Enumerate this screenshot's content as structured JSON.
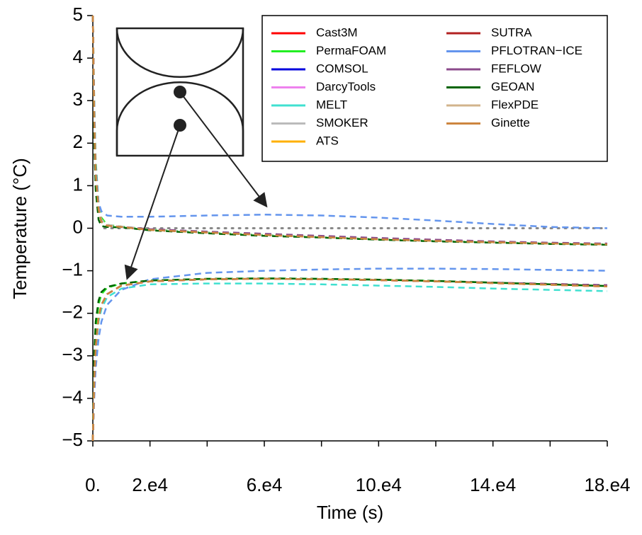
{
  "chart_data": {
    "type": "line",
    "ylabel": "Temperature (°C)",
    "xlabel": "Time (s)",
    "x": [
      0,
      500,
      1000,
      2000,
      3000,
      5000,
      10000,
      20000,
      40000,
      60000,
      80000,
      100000,
      120000,
      140000,
      160000,
      180000
    ],
    "xlim": [
      0,
      180000
    ],
    "xticks": [
      {
        "value": 0,
        "label": "0."
      },
      {
        "value": 20000,
        "label": "2.e4"
      },
      {
        "value": 60000,
        "label": "6.e4"
      },
      {
        "value": 100000,
        "label": "10.e4"
      },
      {
        "value": 140000,
        "label": "14.e4"
      },
      {
        "value": 180000,
        "label": "18.e4"
      }
    ],
    "minor_xticks": [
      40000,
      80000,
      120000,
      160000
    ],
    "ylim": [
      -5,
      5
    ],
    "yticks": [
      {
        "value": -5,
        "label": "−5"
      },
      {
        "value": -4,
        "label": "−4"
      },
      {
        "value": -3,
        "label": "−3"
      },
      {
        "value": -2,
        "label": "−2"
      },
      {
        "value": -1,
        "label": "−1"
      },
      0,
      1,
      2,
      3,
      4,
      5
    ],
    "reference_line": {
      "y": 0,
      "x": [
        4000,
        180000
      ],
      "color": "#888888"
    },
    "legend": "top-right",
    "series": [
      {
        "name": "Cast3M",
        "color": "#ff0000",
        "values": [
          5,
          2.6,
          1.3,
          0.45,
          0.15,
          0.06,
          0.03,
          -0.04,
          -0.1,
          -0.16,
          -0.21,
          -0.26,
          -0.3,
          -0.33,
          -0.36,
          -0.38
        ],
        "lower_values": [
          -5,
          -3.6,
          -2.8,
          -2.1,
          -1.8,
          -1.55,
          -1.35,
          -1.25,
          -1.2,
          -1.19,
          -1.2,
          -1.22,
          -1.25,
          -1.29,
          -1.33,
          -1.37
        ]
      },
      {
        "name": "PermaFOAM",
        "color": "#22ee22",
        "values": [
          5,
          3,
          1.6,
          0.6,
          0.25,
          0.08,
          0.04,
          -0.03,
          -0.1,
          -0.16,
          -0.21,
          -0.26,
          -0.3,
          -0.33,
          -0.36,
          -0.38
        ],
        "lower_values": [
          -5,
          -3.2,
          -2.4,
          -1.8,
          -1.55,
          -1.4,
          -1.3,
          -1.23,
          -1.19,
          -1.18,
          -1.19,
          -1.21,
          -1.24,
          -1.28,
          -1.32,
          -1.36
        ]
      },
      {
        "name": "COMSOL",
        "color": "#0000dd",
        "values": [
          5,
          2.6,
          1.3,
          0.45,
          0.15,
          0.06,
          0.03,
          -0.04,
          -0.1,
          -0.16,
          -0.21,
          -0.26,
          -0.3,
          -0.33,
          -0.36,
          -0.38
        ],
        "lower_values": [
          -5,
          -3.6,
          -2.8,
          -2.1,
          -1.8,
          -1.55,
          -1.35,
          -1.25,
          -1.2,
          -1.19,
          -1.2,
          -1.22,
          -1.25,
          -1.29,
          -1.33,
          -1.37
        ]
      },
      {
        "name": "DarcyTools",
        "color": "#ee82ee",
        "values": [
          5,
          2.6,
          1.3,
          0.45,
          0.15,
          0.06,
          0.03,
          -0.04,
          -0.1,
          -0.16,
          -0.21,
          -0.26,
          -0.3,
          -0.33,
          -0.36,
          -0.38
        ],
        "lower_values": [
          -5,
          -3.6,
          -2.8,
          -2.1,
          -1.8,
          -1.55,
          -1.35,
          -1.25,
          -1.2,
          -1.19,
          -1.2,
          -1.22,
          -1.25,
          -1.29,
          -1.33,
          -1.37
        ]
      },
      {
        "name": "MELT",
        "color": "#40e0d0",
        "values": [
          5,
          2.6,
          1.3,
          0.45,
          0.15,
          0.06,
          0.03,
          -0.04,
          -0.1,
          -0.16,
          -0.21,
          -0.26,
          -0.3,
          -0.33,
          -0.36,
          -0.38
        ],
        "lower_values": [
          -5,
          -3.7,
          -2.9,
          -2.2,
          -1.9,
          -1.62,
          -1.42,
          -1.32,
          -1.3,
          -1.3,
          -1.32,
          -1.35,
          -1.38,
          -1.42,
          -1.45,
          -1.48
        ]
      },
      {
        "name": "SMOKER",
        "color": "#bbbbbb",
        "values": [
          5,
          2.7,
          1.4,
          0.5,
          0.2,
          0.08,
          0.04,
          -0.03,
          -0.1,
          -0.16,
          -0.21,
          -0.26,
          -0.3,
          -0.33,
          -0.36,
          -0.38
        ],
        "lower_values": [
          -5,
          -3.6,
          -2.8,
          -2.1,
          -1.8,
          -1.55,
          -1.35,
          -1.25,
          -1.2,
          -1.19,
          -1.2,
          -1.22,
          -1.25,
          -1.29,
          -1.33,
          -1.37
        ]
      },
      {
        "name": "ATS",
        "color": "#ffb000",
        "values": [
          5,
          2.6,
          1.3,
          0.45,
          0.15,
          0.06,
          0.03,
          -0.04,
          -0.1,
          -0.16,
          -0.21,
          -0.26,
          -0.3,
          -0.33,
          -0.36,
          -0.38
        ],
        "lower_values": [
          -5,
          -3.6,
          -2.8,
          -2.1,
          -1.8,
          -1.55,
          -1.35,
          -1.25,
          -1.2,
          -1.19,
          -1.2,
          -1.22,
          -1.25,
          -1.29,
          -1.33,
          -1.37
        ]
      },
      {
        "name": "SUTRA",
        "color": "#b22222",
        "values": [
          5,
          2.6,
          1.3,
          0.45,
          0.15,
          0.06,
          0.03,
          -0.04,
          -0.1,
          -0.15,
          -0.2,
          -0.25,
          -0.29,
          -0.32,
          -0.35,
          -0.37
        ],
        "lower_values": [
          -5,
          -3.6,
          -2.8,
          -2.1,
          -1.8,
          -1.55,
          -1.35,
          -1.25,
          -1.2,
          -1.19,
          -1.2,
          -1.22,
          -1.25,
          -1.28,
          -1.31,
          -1.34
        ]
      },
      {
        "name": "PFLOTRAN−ICE",
        "color": "#6495ed",
        "values": [
          5,
          3,
          1.5,
          0.6,
          0.4,
          0.3,
          0.27,
          0.27,
          0.3,
          0.32,
          0.3,
          0.25,
          0.18,
          0.1,
          0.03,
          0
        ],
        "lower_values": [
          -5,
          -4,
          -3.3,
          -2.6,
          -2.2,
          -1.8,
          -1.45,
          -1.2,
          -1.05,
          -1,
          -0.97,
          -0.95,
          -0.95,
          -0.96,
          -0.98,
          -1
        ]
      },
      {
        "name": "FEFLOW",
        "color": "#8b4a8b",
        "values": [
          5,
          2.6,
          1.3,
          0.45,
          0.15,
          0.06,
          0.03,
          -0.02,
          -0.08,
          -0.13,
          -0.18,
          -0.23,
          -0.27,
          -0.31,
          -0.34,
          -0.36
        ],
        "lower_values": [
          -5,
          -3.6,
          -2.8,
          -2.1,
          -1.8,
          -1.55,
          -1.35,
          -1.25,
          -1.2,
          -1.19,
          -1.2,
          -1.22,
          -1.25,
          -1.28,
          -1.31,
          -1.34
        ]
      },
      {
        "name": "GEOAN",
        "color": "#006400",
        "values": [
          5,
          2,
          0.9,
          0.2,
          0.05,
          0.03,
          0.02,
          -0.05,
          -0.12,
          -0.18,
          -0.22,
          -0.27,
          -0.31,
          -0.34,
          -0.37,
          -0.39
        ],
        "lower_values": [
          -5,
          -3,
          -2.2,
          -1.7,
          -1.5,
          -1.38,
          -1.3,
          -1.23,
          -1.19,
          -1.18,
          -1.19,
          -1.21,
          -1.24,
          -1.28,
          -1.32,
          -1.36
        ]
      },
      {
        "name": "FlexPDE",
        "color": "#d2b48c",
        "values": [
          5,
          2.6,
          1.3,
          0.45,
          0.15,
          0.06,
          0.03,
          -0.04,
          -0.1,
          -0.16,
          -0.21,
          -0.26,
          -0.3,
          -0.33,
          -0.36,
          -0.38
        ],
        "lower_values": [
          -5,
          -3.6,
          -2.8,
          -2.1,
          -1.8,
          -1.55,
          -1.35,
          -1.25,
          -1.2,
          -1.19,
          -1.2,
          -1.22,
          -1.25,
          -1.29,
          -1.33,
          -1.37
        ]
      },
      {
        "name": "Ginette",
        "color": "#cd853f",
        "values": [
          5,
          2.6,
          1.3,
          0.45,
          0.15,
          0.06,
          0.03,
          -0.04,
          -0.1,
          -0.16,
          -0.21,
          -0.26,
          -0.3,
          -0.33,
          -0.36,
          -0.38
        ],
        "lower_values": [
          -5,
          -3.6,
          -2.8,
          -2.1,
          -1.8,
          -1.55,
          -1.35,
          -1.25,
          -1.2,
          -1.19,
          -1.2,
          -1.22,
          -1.25,
          -1.29,
          -1.33,
          -1.37
        ]
      }
    ]
  }
}
